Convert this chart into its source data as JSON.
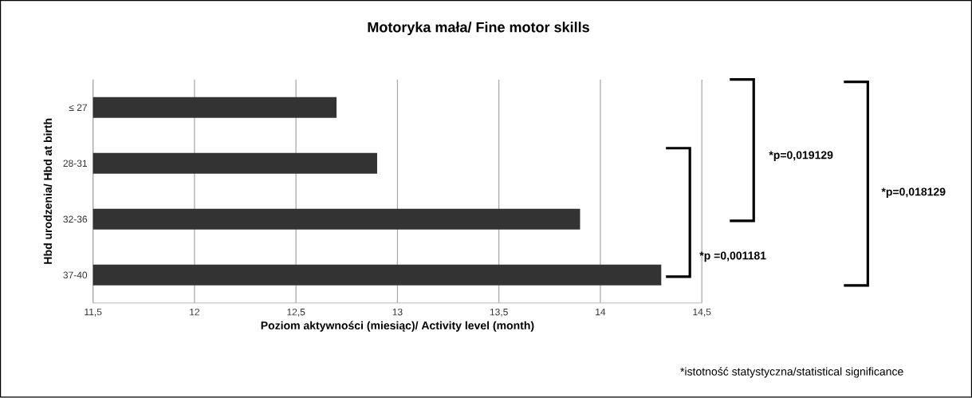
{
  "chart_data": {
    "type": "bar",
    "orientation": "horizontal",
    "title": "Motoryka mała/  Fine motor skills",
    "xlabel": "Poziom aktywności (miesiąc)/ Activity level (month)",
    "ylabel": "Hbd urodzenia/ Hbd at birth",
    "categories": [
      "≤ 27",
      "28-31",
      "32-36",
      "37-40"
    ],
    "values": [
      12.7,
      12.9,
      13.9,
      14.3
    ],
    "color": "#333333",
    "xlim": [
      11.5,
      14.5
    ],
    "xticks": [
      {
        "value": 11.5,
        "label": "11,5"
      },
      12,
      {
        "value": 12.5,
        "label": "12,5"
      },
      13,
      {
        "value": 13.5,
        "label": "13,5"
      },
      14,
      {
        "value": 14.5,
        "label": "14,5"
      }
    ],
    "grid": "x",
    "annotations": [
      "*p =0,001181",
      "*p=0,019129",
      "*p=0,018129",
      "*istotność statystyczna/statistical significance"
    ]
  }
}
